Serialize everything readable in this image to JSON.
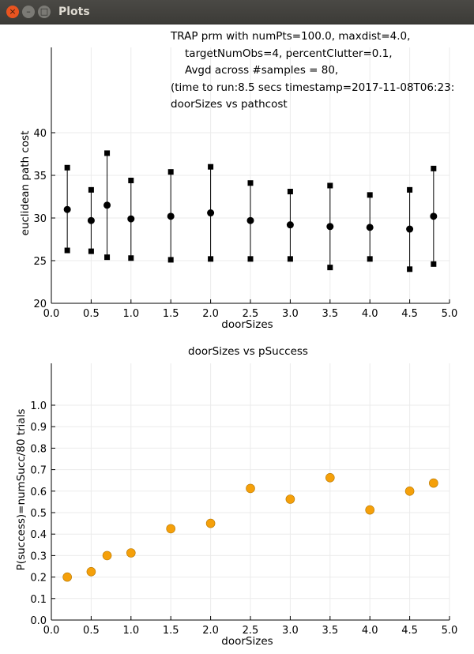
{
  "window": {
    "title": "Plots",
    "close_glyph": "×",
    "minimize_glyph": "–",
    "maximize_glyph": "□"
  },
  "colors": {
    "titlebar": "#3c3b37",
    "close_button": "#e95420",
    "marker_top": "#000000",
    "marker_bottom": "#f5a00a",
    "grid": "#ebebeb"
  },
  "chart_data": [
    {
      "type": "scatter",
      "title_lines": [
        "TRAP prm with numPts=100.0, maxdist=4.0,",
        "targetNumObs=4, percentClutter=0.1,",
        "Avgd across #samples = 80,",
        "(time to run:8.5 secs timestamp=2017-11-08T06:23:",
        "doorSizes vs pathcost"
      ],
      "xlabel": "doorSizes",
      "ylabel": "euclidean path cost",
      "xlim": [
        0.0,
        5.0
      ],
      "ylim": [
        20,
        40
      ],
      "xticks": [
        "0.0",
        "0.5",
        "1.0",
        "1.5",
        "2.0",
        "2.5",
        "3.0",
        "3.5",
        "4.0",
        "4.5",
        "5.0"
      ],
      "yticks": [
        "20",
        "25",
        "30",
        "35",
        "40"
      ],
      "grid": true,
      "legend": "none",
      "x": [
        0.2,
        0.5,
        0.7,
        1.0,
        1.5,
        2.0,
        2.5,
        3.0,
        3.5,
        4.0,
        4.5,
        4.8
      ],
      "mean": [
        31.0,
        29.7,
        31.5,
        29.9,
        30.2,
        30.6,
        29.7,
        29.2,
        29.0,
        28.9,
        28.7,
        30.2
      ],
      "upper": [
        35.9,
        33.3,
        37.6,
        34.4,
        35.4,
        36.0,
        34.1,
        33.1,
        33.8,
        32.7,
        33.3,
        35.8
      ],
      "lower": [
        26.2,
        26.1,
        25.4,
        25.3,
        25.1,
        25.2,
        25.2,
        25.2,
        24.2,
        25.2,
        24.0,
        24.6
      ]
    },
    {
      "type": "scatter",
      "title": "doorSizes vs pSuccess",
      "xlabel": "doorSizes",
      "ylabel": "P(success)=numSucc/80 trials",
      "xlim": [
        0.0,
        5.0
      ],
      "ylim": [
        0.0,
        1.0
      ],
      "xticks": [
        "0.0",
        "0.5",
        "1.0",
        "1.5",
        "2.0",
        "2.5",
        "3.0",
        "3.5",
        "4.0",
        "4.5",
        "5.0"
      ],
      "yticks": [
        "0.0",
        "0.1",
        "0.2",
        "0.3",
        "0.4",
        "0.5",
        "0.6",
        "0.7",
        "0.8",
        "0.9",
        "1.0"
      ],
      "grid": true,
      "legend": "none",
      "x": [
        0.2,
        0.5,
        0.7,
        1.0,
        1.5,
        2.0,
        2.5,
        3.0,
        3.5,
        4.0,
        4.5,
        4.8
      ],
      "y": [
        0.2,
        0.225,
        0.3,
        0.3125,
        0.425,
        0.45,
        0.6125,
        0.5625,
        0.6625,
        0.5125,
        0.6,
        0.6375
      ]
    }
  ]
}
